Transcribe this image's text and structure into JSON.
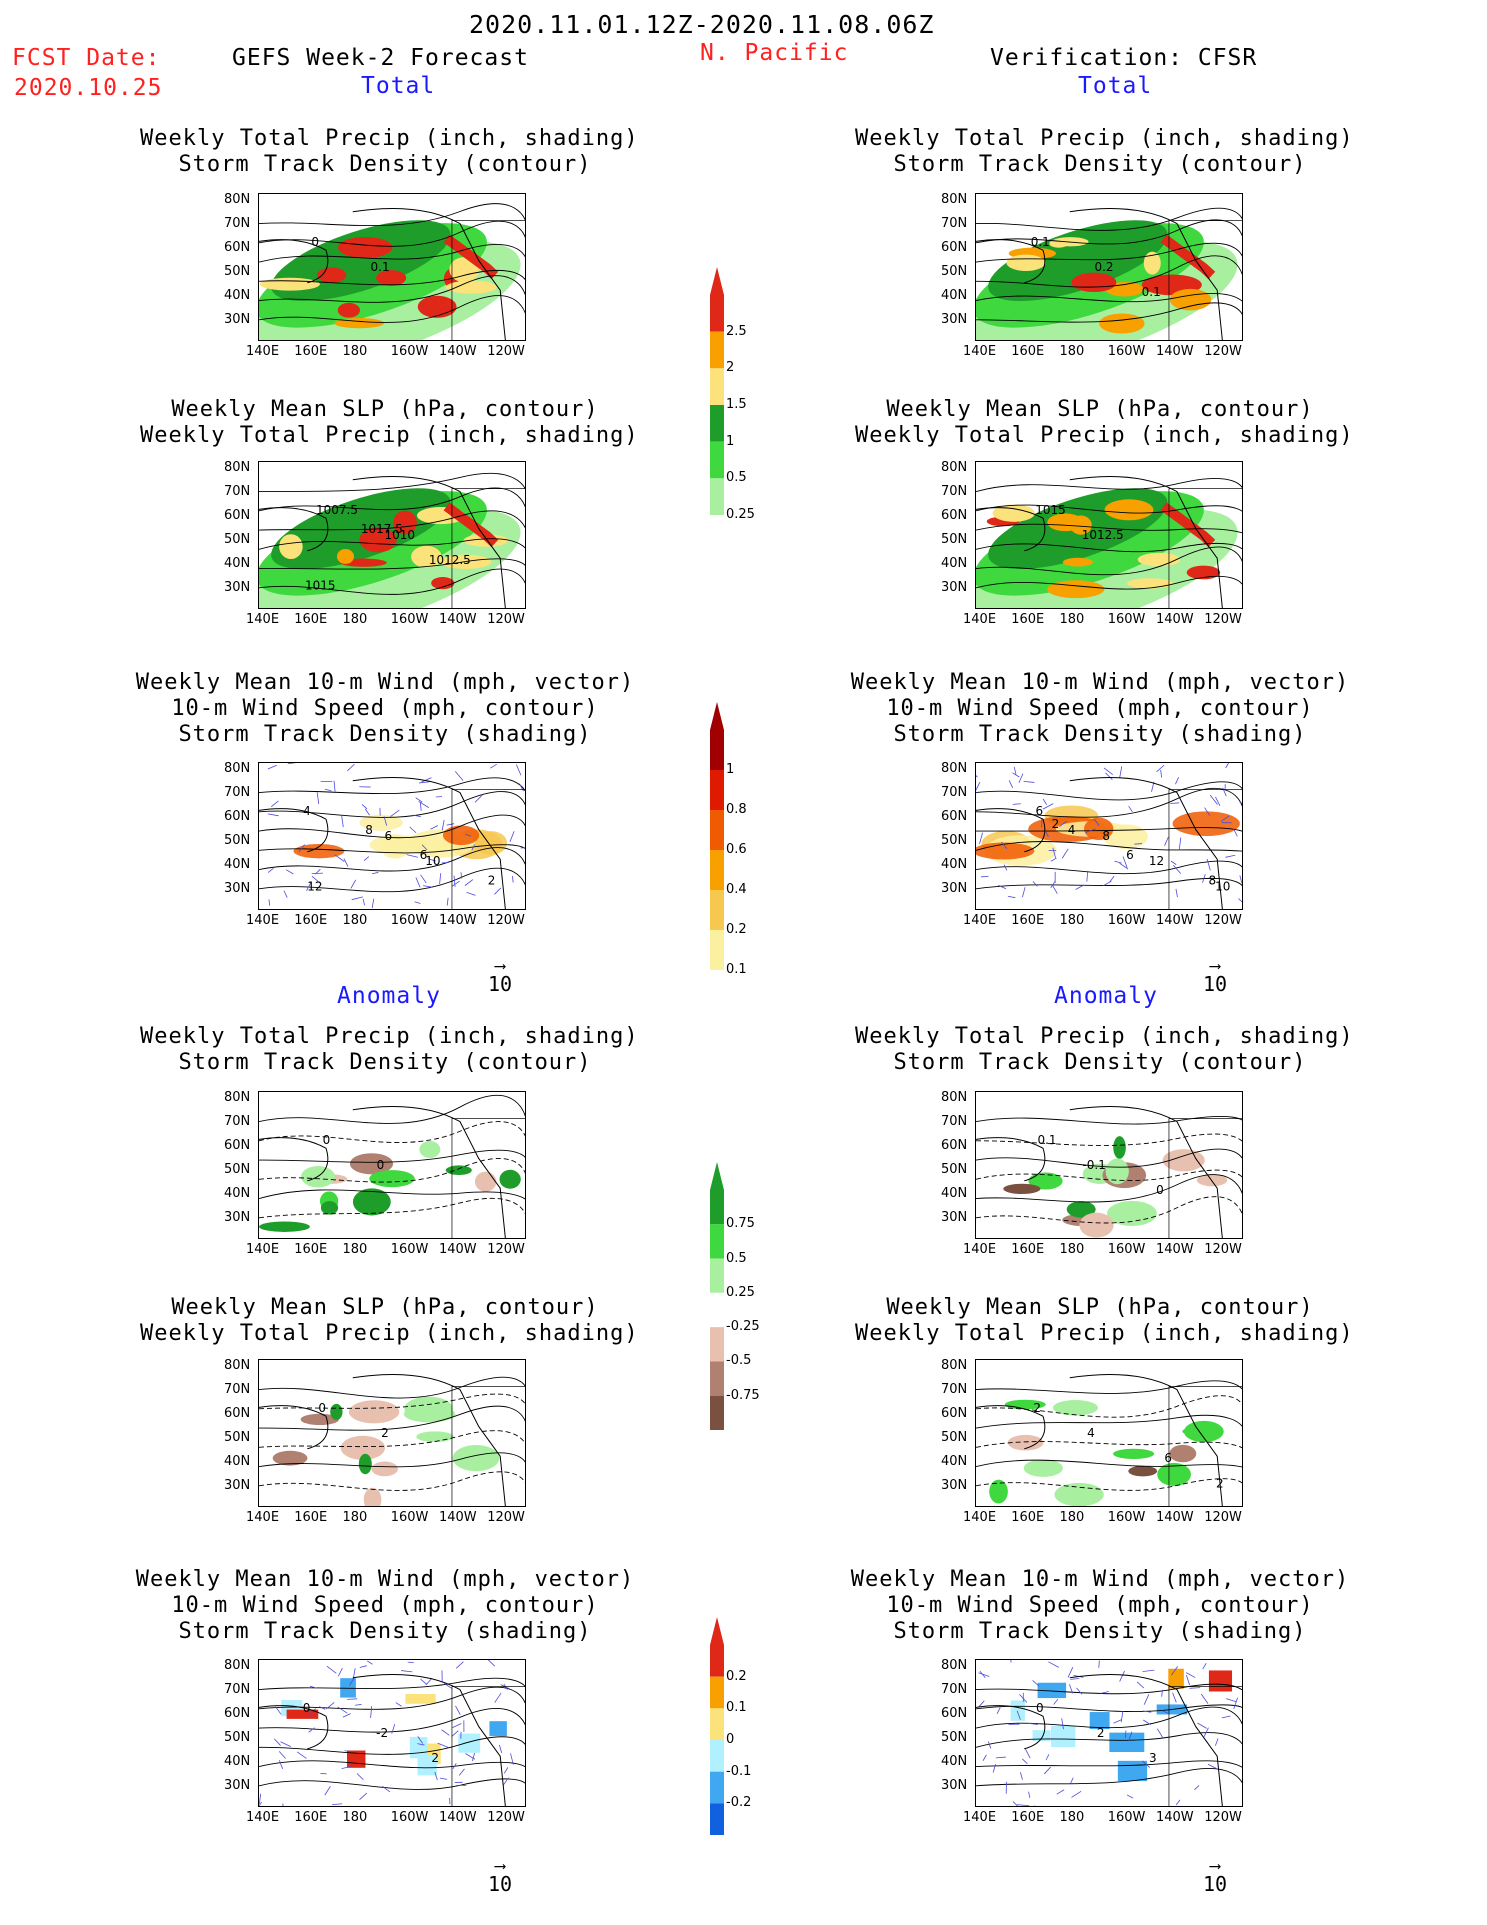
{
  "header": {
    "date_range": "2020.11.01.12Z-2020.11.08.06Z",
    "fcst_label": "FCST Date:",
    "fcst_date": "2020.10.25",
    "model": "GEFS Week-2 Forecast",
    "region": "N. Pacific",
    "verification": "Verification: CFSR"
  },
  "section_labels": {
    "total": "Total",
    "anomaly": "Anomaly"
  },
  "titles": {
    "precip_track": [
      "Weekly Total Precip (inch, shading)",
      "Storm Track Density (contour)"
    ],
    "slp_precip": [
      "Weekly Mean SLP (hPa, contour)",
      "Weekly Total Precip (inch, shading)"
    ],
    "wind": [
      "Weekly Mean 10-m Wind (mph, vector)",
      "10-m Wind Speed (mph, contour)",
      "Storm Track Density (shading)"
    ]
  },
  "axes": {
    "lat_ticks": [
      "80N",
      "70N",
      "60N",
      "50N",
      "40N",
      "30N"
    ],
    "lon_ticks": [
      "140E",
      "160E",
      "180",
      "160W",
      "140W",
      "120W"
    ]
  },
  "vector_reference": "10",
  "colorbars": {
    "precip_total": {
      "labels": [
        "2.5",
        "2",
        "1.5",
        "1",
        "0.5",
        "0.25"
      ],
      "colors": [
        "#e02818",
        "#f7a000",
        "#fbe27a",
        "#1f9d2a",
        "#3fd83f",
        "#a8f0a0"
      ]
    },
    "storm_total": {
      "labels": [
        "1",
        "0.8",
        "0.6",
        "0.4",
        "0.2",
        "0.1"
      ],
      "colors": [
        "#a00000",
        "#e01a00",
        "#f05a00",
        "#f7a000",
        "#f7c850",
        "#fbf0a0"
      ]
    },
    "precip_anom": {
      "labels": [
        "0.75",
        "0.5",
        "0.25",
        "-0.25",
        "-0.5",
        "-0.75"
      ],
      "colors": [
        "#1f9d2a",
        "#3fd83f",
        "#a8f0a0",
        "#ffffff",
        "#e8c0b0",
        "#b08070",
        "#7a5040"
      ]
    },
    "storm_anom": {
      "labels": [
        "0.2",
        "0.1",
        "0",
        "-0.1",
        "-0.2"
      ],
      "colors": [
        "#e02818",
        "#f7a000",
        "#fbe27a",
        "#b0f0ff",
        "#3fa8f0",
        "#1060e0"
      ]
    }
  },
  "contour_labels": {
    "p1": [
      "0",
      "0.1"
    ],
    "p2": [
      "0.1",
      "0.2",
      "0.1"
    ],
    "p3": [
      "1007.5",
      "1010",
      "1012.5",
      "1015",
      "1017.5"
    ],
    "p4": [
      "1015",
      "1012.5"
    ],
    "p5": [
      "4",
      "6",
      "10",
      "12",
      "8",
      "6",
      "2"
    ],
    "p6": [
      "6",
      "8",
      "12",
      "10",
      "4",
      "6",
      "8",
      "2"
    ],
    "p7": [
      "0",
      "0"
    ],
    "p8": [
      "0.1",
      "-0.1",
      "0"
    ],
    "p9": [
      "0",
      "2"
    ],
    "p10": [
      "2",
      "4",
      "6",
      "2"
    ],
    "p11": [
      "0",
      "-2",
      "2"
    ],
    "p12": [
      "0",
      "2",
      "3"
    ]
  }
}
